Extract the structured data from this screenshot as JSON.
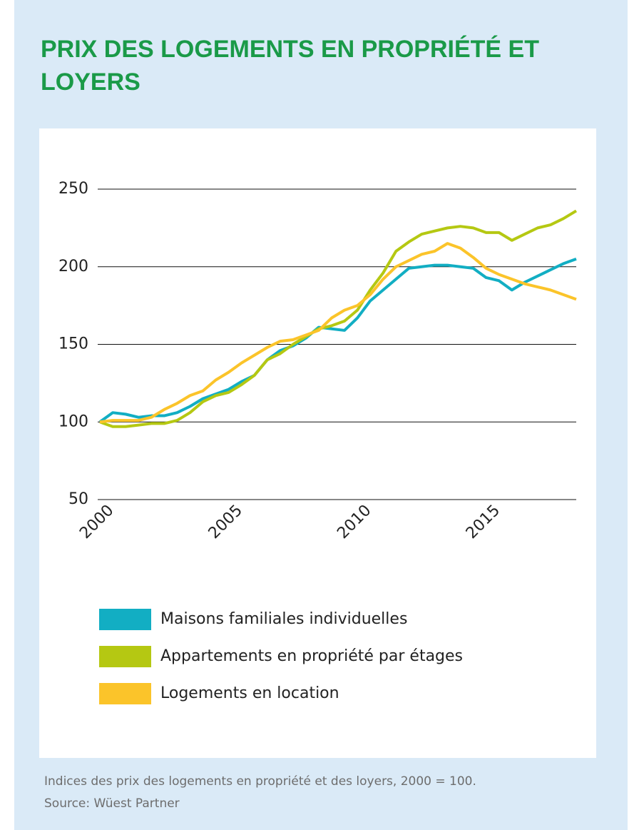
{
  "chart_data": {
    "type": "line",
    "title": "PRIX DES LOGEMENTS EN PROPRIÉTÉ ET LOYERS",
    "note": "Indices des prix des logements en propriété et des loyers, 2000 = 100.",
    "source": "Source: Wüest Partner",
    "x": [
      2000,
      2000.5,
      2001,
      2001.5,
      2002,
      2002.5,
      2003,
      2003.5,
      2004,
      2004.5,
      2005,
      2005.5,
      2006,
      2006.5,
      2007,
      2007.5,
      2008,
      2008.5,
      2009,
      2009.5,
      2010,
      2010.5,
      2011,
      2011.5,
      2012,
      2012.5,
      2013,
      2013.5,
      2014,
      2014.5,
      2015,
      2015.5,
      2016,
      2016.5,
      2017,
      2017.5,
      2018,
      2018.5
    ],
    "series": [
      {
        "name": "Maisons familiales individuelles",
        "color": "#12aec3",
        "values": [
          100,
          106,
          105,
          103,
          104,
          104,
          106,
          110,
          115,
          118,
          121,
          126,
          130,
          140,
          146,
          149,
          154,
          161,
          160,
          159,
          167,
          178,
          185,
          192,
          199,
          200,
          201,
          201,
          200,
          199,
          193,
          191,
          185,
          190,
          194,
          198,
          202,
          205
        ]
      },
      {
        "name": "Appartements en propriété par étages",
        "color": "#b5c812",
        "values": [
          100,
          97,
          97,
          98,
          99,
          99,
          101,
          106,
          113,
          117,
          119,
          124,
          130,
          140,
          144,
          150,
          155,
          160,
          162,
          165,
          172,
          185,
          196,
          210,
          216,
          221,
          223,
          225,
          226,
          225,
          222,
          222,
          217,
          221,
          225,
          227,
          231,
          236
        ]
      },
      {
        "name": "Logements en location",
        "color": "#fbc42a",
        "values": [
          100,
          101,
          101,
          101,
          103,
          108,
          112,
          117,
          120,
          127,
          132,
          138,
          143,
          148,
          152,
          153,
          156,
          159,
          167,
          172,
          175,
          182,
          192,
          200,
          204,
          208,
          210,
          215,
          212,
          206,
          199,
          195,
          192,
          189,
          187,
          185,
          182,
          179
        ]
      }
    ],
    "xlim": [
      2000,
      2018.5
    ],
    "xticks": [
      2000,
      2005,
      2010,
      2015
    ],
    "ylim": [
      50,
      250
    ],
    "yticks": [
      50,
      100,
      150,
      200,
      250
    ],
    "grid": true
  }
}
